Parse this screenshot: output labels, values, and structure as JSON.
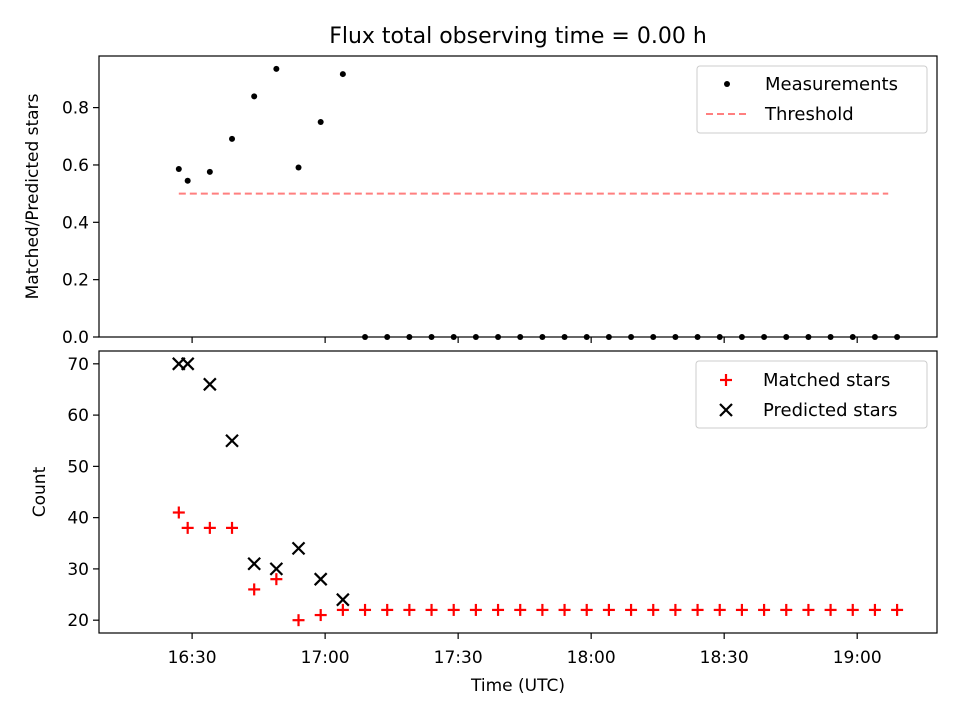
{
  "title": "Flux total observing time = 0.00 h",
  "chart_data": [
    {
      "type": "scatter",
      "ylabel": "Matched/Predicted stars",
      "ylim": [
        0,
        0.98
      ],
      "yticks": [
        0.0,
        0.2,
        0.4,
        0.6,
        0.8
      ],
      "ytick_labels": [
        "0.0",
        "0.2",
        "0.4",
        "0.6",
        "0.8"
      ],
      "legend_position": "top-right",
      "grid": false,
      "series": [
        {
          "name": "Measurements",
          "kind": "points",
          "color": "#000000",
          "marker": "dot",
          "x": [
            "16:27",
            "16:29",
            "16:34",
            "16:39",
            "16:44",
            "16:49",
            "16:54",
            "16:59",
            "17:04",
            "17:09",
            "17:14",
            "17:19",
            "17:24",
            "17:29",
            "17:34",
            "17:39",
            "17:44",
            "17:49",
            "17:54",
            "17:59",
            "18:04",
            "18:09",
            "18:14",
            "18:19",
            "18:24",
            "18:29",
            "18:34",
            "18:39",
            "18:44",
            "18:49",
            "18:54",
            "18:59",
            "19:04",
            "19:09"
          ],
          "y": [
            0.586,
            0.545,
            0.576,
            0.691,
            0.839,
            0.935,
            0.591,
            0.75,
            0.917,
            0,
            0,
            0,
            0,
            0,
            0,
            0,
            0,
            0,
            0,
            0,
            0,
            0,
            0,
            0,
            0,
            0,
            0,
            0,
            0,
            0,
            0,
            0,
            0,
            0
          ]
        },
        {
          "name": "Threshold",
          "kind": "dashed-line",
          "color": "#ff7f7f",
          "x": [
            "16:27",
            "19:07"
          ],
          "y": [
            0.5,
            0.5
          ]
        }
      ]
    },
    {
      "type": "scatter",
      "xlabel": "Time (UTC)",
      "ylabel": "Count",
      "xlim": [
        "16:09",
        "19:18"
      ],
      "ylim": [
        17.5,
        72.5
      ],
      "xticks": [
        "16:30",
        "17:00",
        "17:30",
        "18:00",
        "18:30",
        "19:00"
      ],
      "yticks": [
        20,
        30,
        40,
        50,
        60,
        70
      ],
      "ytick_labels": [
        "20",
        "30",
        "40",
        "50",
        "60",
        "70"
      ],
      "legend_position": "top-right",
      "grid": false,
      "series": [
        {
          "name": "Matched stars",
          "kind": "points",
          "color": "#ff0000",
          "marker": "plus",
          "x": [
            "16:27",
            "16:29",
            "16:34",
            "16:39",
            "16:44",
            "16:49",
            "16:54",
            "16:59",
            "17:04",
            "17:09",
            "17:14",
            "17:19",
            "17:24",
            "17:29",
            "17:34",
            "17:39",
            "17:44",
            "17:49",
            "17:54",
            "17:59",
            "18:04",
            "18:09",
            "18:14",
            "18:19",
            "18:24",
            "18:29",
            "18:34",
            "18:39",
            "18:44",
            "18:49",
            "18:54",
            "18:59",
            "19:04",
            "19:09"
          ],
          "y": [
            41,
            38,
            38,
            38,
            26,
            28,
            20,
            21,
            22,
            22,
            22,
            22,
            22,
            22,
            22,
            22,
            22,
            22,
            22,
            22,
            22,
            22,
            22,
            22,
            22,
            22,
            22,
            22,
            22,
            22,
            22,
            22,
            22,
            22
          ]
        },
        {
          "name": "Predicted stars",
          "kind": "points",
          "color": "#000000",
          "marker": "x",
          "x": [
            "16:27",
            "16:29",
            "16:34",
            "16:39",
            "16:44",
            "16:49",
            "16:54",
            "16:59",
            "17:04"
          ],
          "y": [
            70,
            70,
            66,
            55,
            31,
            30,
            34,
            28,
            24
          ]
        }
      ]
    }
  ]
}
